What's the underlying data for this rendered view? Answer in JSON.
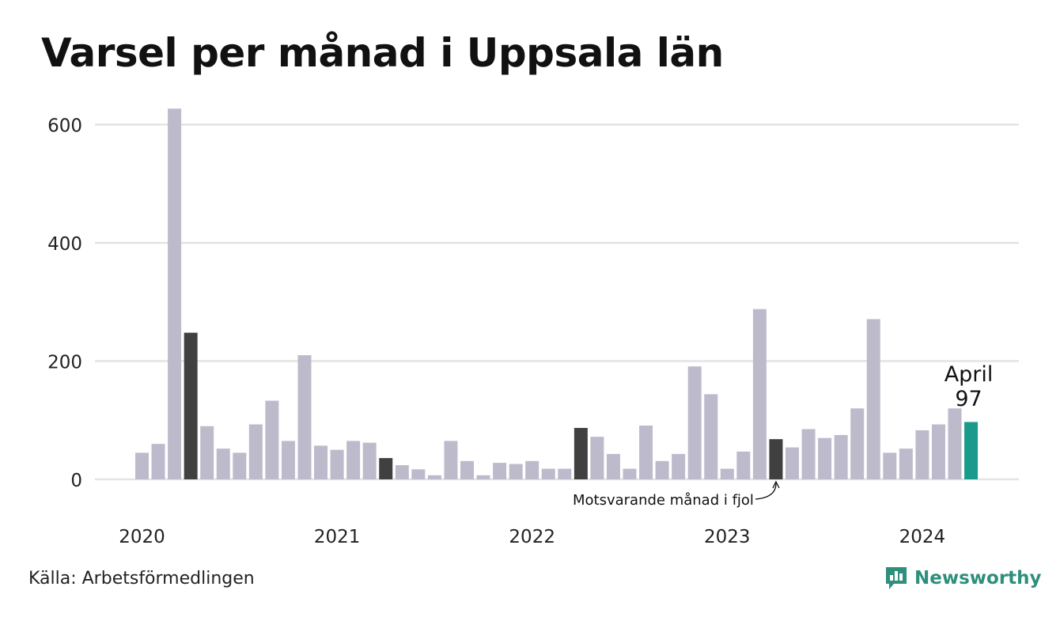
{
  "page": {
    "source": "Källa: Arbetsförmedlingen"
  },
  "brand": {
    "name": "Newsworthy",
    "color": "#2e8f7c"
  },
  "colors": {
    "bar": "#bdbbcb",
    "comparison": "#404040",
    "highlight": "#1a9a8a",
    "grid": "#e3e3e3"
  },
  "chart_data": {
    "type": "bar",
    "title": "Varsel per månad i Uppsala län",
    "x_start": "2020-01",
    "year_ticks": [
      "2020",
      "2021",
      "2022",
      "2023",
      "2024"
    ],
    "y_ticks": [
      "0",
      "200",
      "400",
      "600"
    ],
    "ylim": [
      0,
      640
    ],
    "grid": true,
    "values": [
      45,
      60,
      627,
      248,
      90,
      52,
      45,
      93,
      133,
      65,
      210,
      57,
      50,
      65,
      62,
      36,
      24,
      17,
      7,
      65,
      31,
      7,
      28,
      26,
      31,
      18,
      18,
      87,
      72,
      43,
      18,
      91,
      31,
      43,
      191,
      144,
      18,
      47,
      288,
      68,
      54,
      85,
      70,
      75,
      120,
      271,
      45,
      52,
      83,
      93,
      120,
      97
    ],
    "comparison_indices": [
      3,
      15,
      27,
      39
    ],
    "highlight_index": 51,
    "highlight_label": {
      "month": "April",
      "value": "97"
    },
    "annotation": {
      "text": "Motsvarande månad i fjol",
      "target_index": 39
    }
  }
}
